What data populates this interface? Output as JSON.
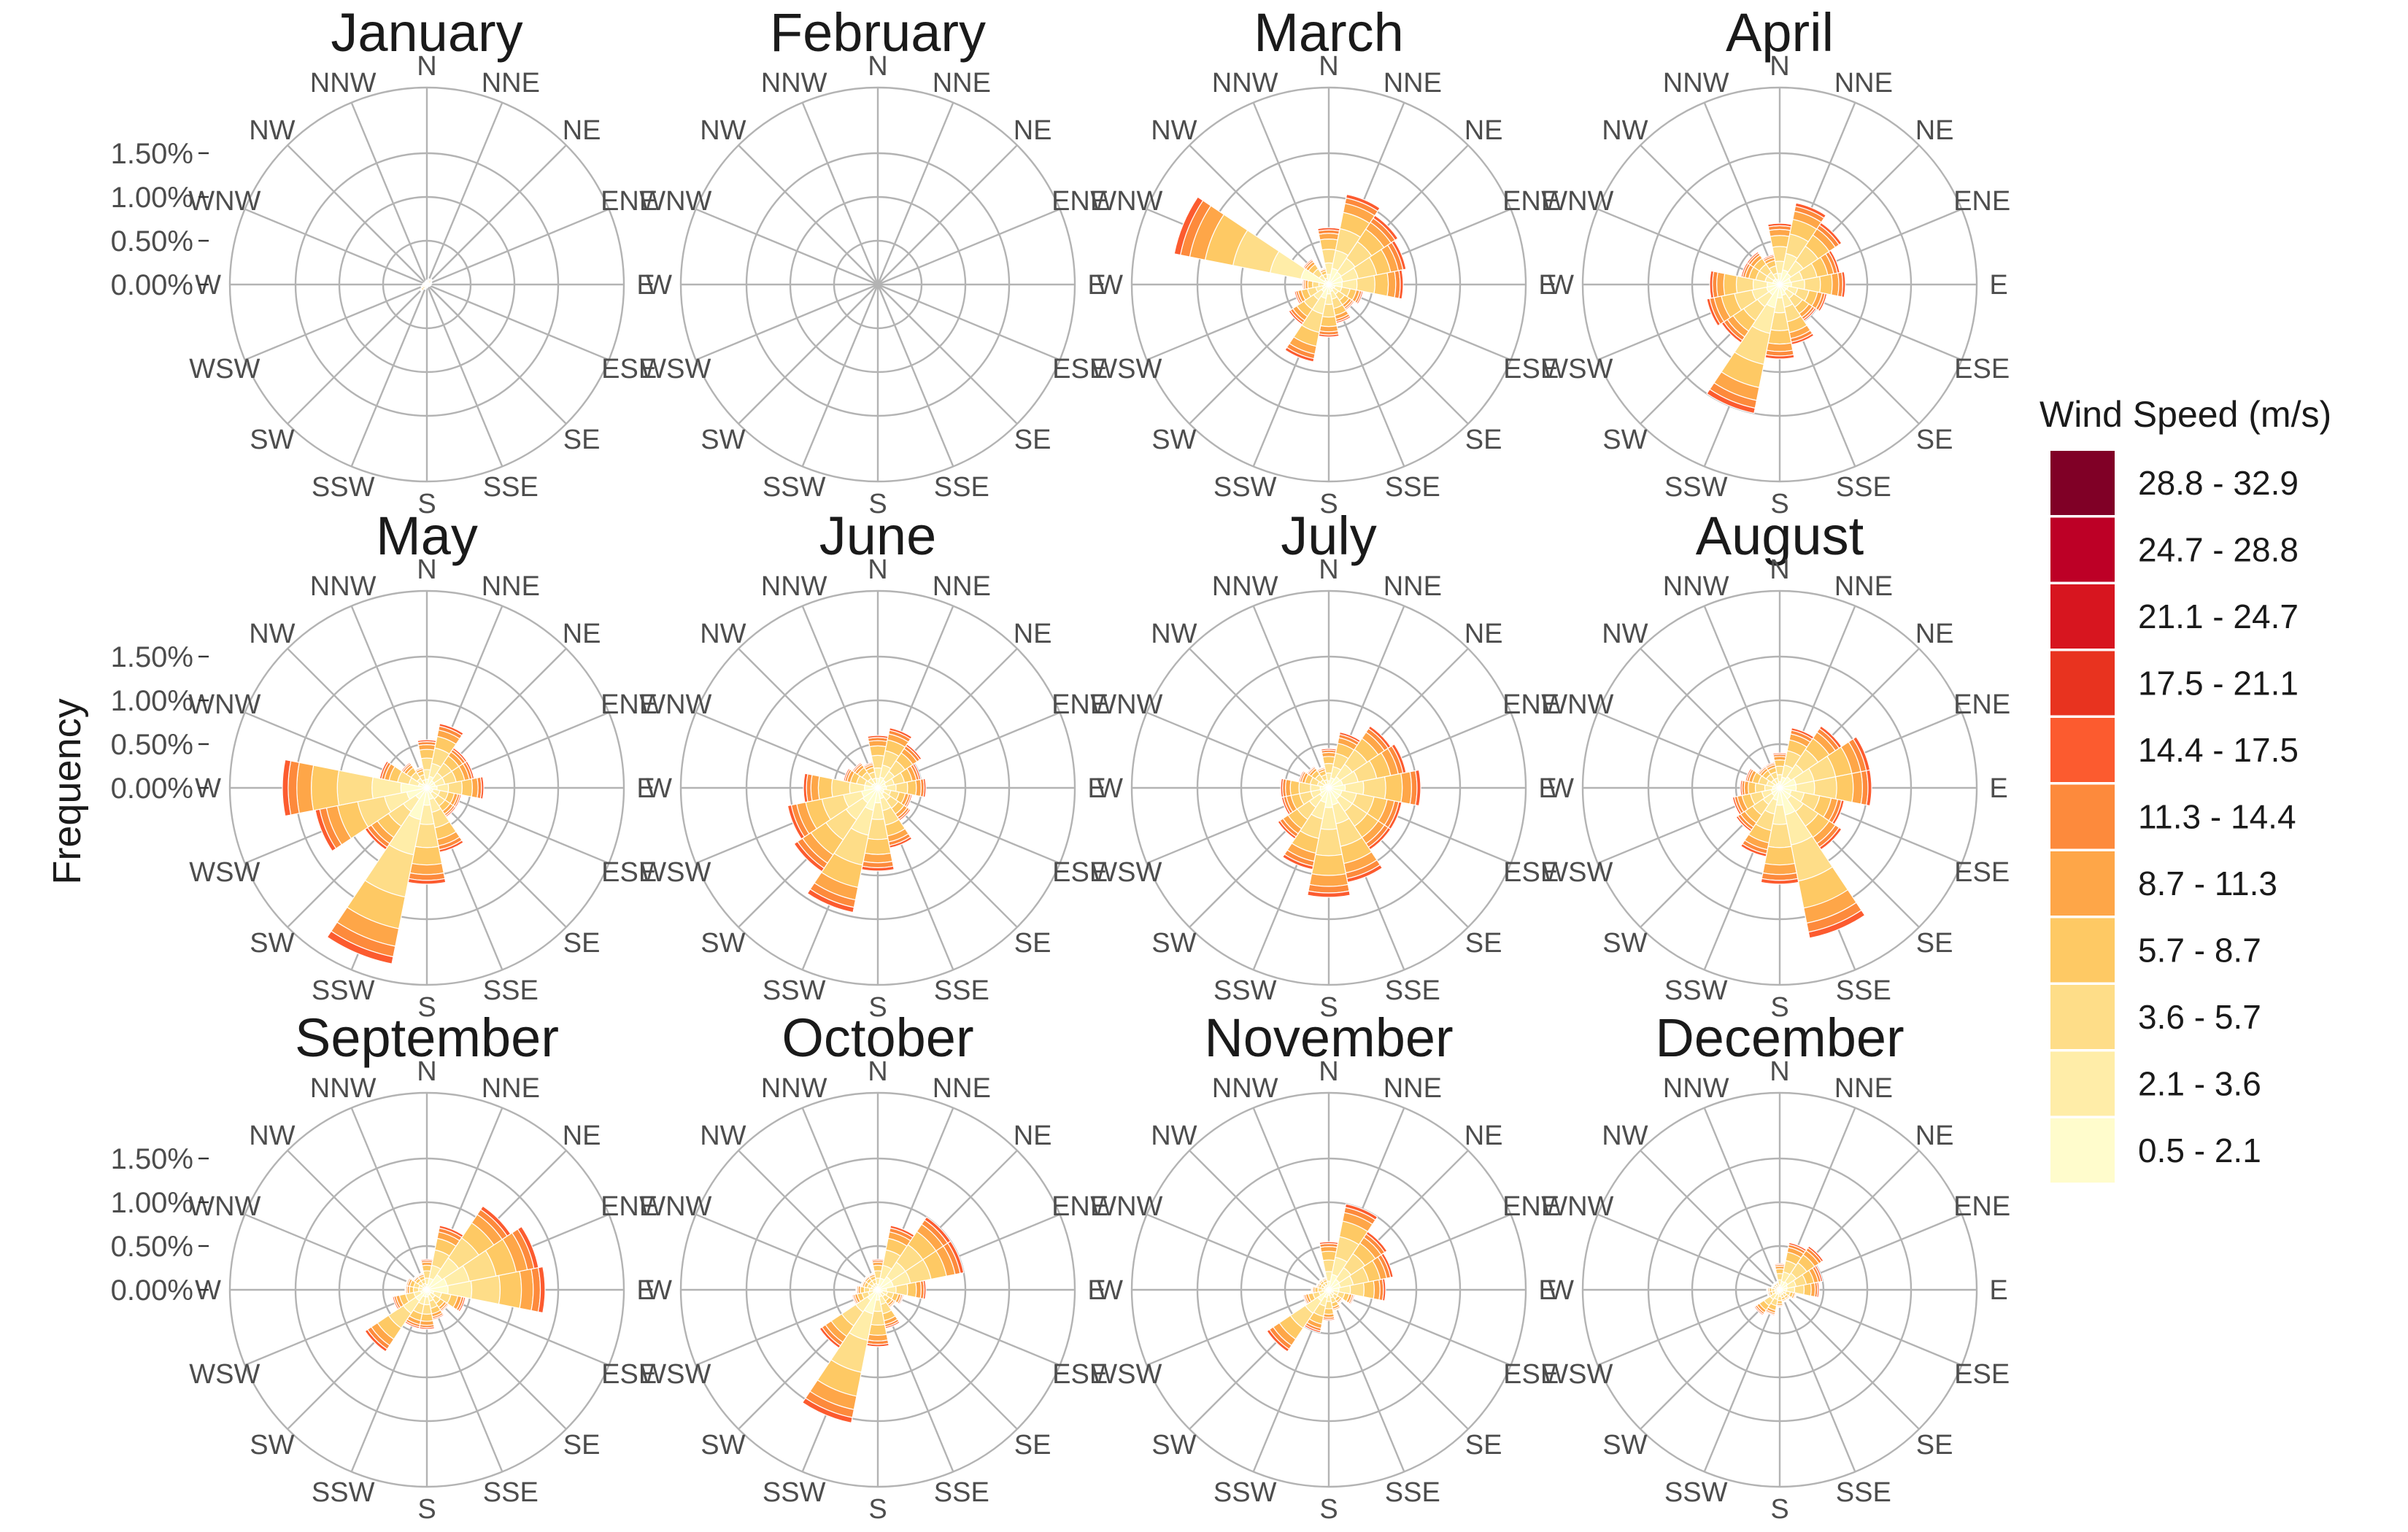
{
  "chart_data": {
    "type": "polar-stacked-bar (wind rose)",
    "y_axis_title": "Frequency",
    "directions": [
      "N",
      "NNE",
      "NE",
      "ENE",
      "E",
      "ESE",
      "SE",
      "SSE",
      "S",
      "SSW",
      "SW",
      "WSW",
      "W",
      "WNW",
      "NW",
      "NNW"
    ],
    "radial_ticks": [
      "0.00%",
      "0.50%",
      "1.00%",
      "1.50%"
    ],
    "radial_range_percent": [
      0,
      2.25
    ],
    "legend": {
      "title": "Wind Speed (m/s)",
      "bins": [
        {
          "label": "28.8 - 32.9",
          "color": "#800026"
        },
        {
          "label": "24.7 - 28.8",
          "color": "#BD0026"
        },
        {
          "label": "21.1 - 24.7",
          "color": "#D7151F"
        },
        {
          "label": "17.5 - 21.1",
          "color": "#E8331F"
        },
        {
          "label": "14.4 - 17.5",
          "color": "#FC5B2F"
        },
        {
          "label": "11.3 - 14.4",
          "color": "#FD8A3C"
        },
        {
          "label": "8.7 - 11.3",
          "color": "#FEA648"
        },
        {
          "label": "5.7 - 8.7",
          "color": "#FEC964"
        },
        {
          "label": "3.6 - 5.7",
          "color": "#FEDD88"
        },
        {
          "label": "2.1 - 3.6",
          "color": "#FFEDA8"
        },
        {
          "label": "0.5 - 2.1",
          "color": "#FFFCCC"
        }
      ]
    },
    "bin_order_inner_to_outer": [
      "0.5 - 2.1",
      "2.1 - 3.6",
      "3.6 - 5.7",
      "5.7 - 8.7",
      "8.7 - 11.3",
      "11.3 - 14.4",
      "14.4 - 17.5",
      "17.5 - 21.1",
      "21.1 - 24.7",
      "24.7 - 28.8",
      "28.8 - 32.9"
    ],
    "panels": [
      {
        "month": "January",
        "show_y_ticks": true,
        "totals": [
          0.05,
          0.07,
          0.08,
          0.06,
          0.05,
          0.04,
          0.03,
          0.03,
          0.04,
          0.06,
          0.1,
          0.07,
          0.05,
          0.04,
          0.03,
          0.04
        ]
      },
      {
        "month": "February",
        "show_y_ticks": false,
        "totals": [
          0,
          0,
          0,
          0,
          0,
          0,
          0,
          0,
          0,
          0,
          0,
          0,
          0,
          0,
          0,
          0
        ]
      },
      {
        "month": "March",
        "show_y_ticks": false,
        "totals": [
          0.65,
          1.05,
          0.95,
          0.9,
          0.85,
          0.4,
          0.35,
          0.45,
          0.6,
          0.9,
          0.55,
          0.4,
          0.3,
          1.8,
          0.35,
          0.2
        ]
      },
      {
        "month": "April",
        "show_y_ticks": false,
        "totals": [
          0.7,
          0.95,
          0.85,
          0.7,
          0.75,
          0.55,
          0.5,
          0.7,
          0.85,
          1.5,
          0.8,
          0.85,
          0.8,
          0.45,
          0.45,
          0.35
        ]
      },
      {
        "month": "May",
        "show_y_ticks": true,
        "totals": [
          0.55,
          0.75,
          0.55,
          0.55,
          0.65,
          0.4,
          0.4,
          0.75,
          1.1,
          2.05,
          0.85,
          1.3,
          1.65,
          0.55,
          0.35,
          0.25
        ]
      },
      {
        "month": "June",
        "show_y_ticks": false,
        "totals": [
          0.6,
          0.7,
          0.6,
          0.5,
          0.55,
          0.4,
          0.45,
          0.7,
          0.95,
          1.45,
          1.15,
          1.05,
          0.85,
          0.4,
          0.35,
          0.3
        ]
      },
      {
        "month": "July",
        "show_y_ticks": false,
        "totals": [
          0.45,
          0.65,
          0.85,
          0.9,
          1.05,
          0.85,
          0.85,
          1.1,
          1.25,
          0.95,
          0.7,
          0.55,
          0.55,
          0.35,
          0.3,
          0.25
        ]
      },
      {
        "month": "August",
        "show_y_ticks": false,
        "totals": [
          0.4,
          0.7,
          0.85,
          1.05,
          1.05,
          0.75,
          0.85,
          1.75,
          1.1,
          0.8,
          0.6,
          0.55,
          0.45,
          0.4,
          0.3,
          0.3
        ]
      },
      {
        "month": "September",
        "show_y_ticks": true,
        "totals": [
          0.35,
          0.75,
          1.15,
          1.3,
          1.35,
          0.45,
          0.3,
          0.35,
          0.45,
          0.45,
          0.85,
          0.4,
          0.25,
          0.25,
          0.2,
          0.2
        ]
      },
      {
        "month": "October",
        "show_y_ticks": false,
        "totals": [
          0.35,
          0.75,
          1.0,
          1.0,
          0.55,
          0.3,
          0.25,
          0.45,
          0.65,
          1.55,
          0.8,
          0.3,
          0.25,
          0.2,
          0.2,
          0.2
        ]
      },
      {
        "month": "November",
        "show_y_ticks": false,
        "totals": [
          0.55,
          1.0,
          0.8,
          0.75,
          0.65,
          0.3,
          0.2,
          0.25,
          0.35,
          0.5,
          0.85,
          0.3,
          0.2,
          0.15,
          0.15,
          0.15
        ]
      },
      {
        "month": "December",
        "show_y_ticks": false,
        "totals": [
          0.3,
          0.55,
          0.6,
          0.5,
          0.45,
          0.2,
          0.15,
          0.15,
          0.2,
          0.3,
          0.35,
          0.15,
          0.15,
          0.1,
          0.1,
          0.1
        ]
      }
    ]
  }
}
